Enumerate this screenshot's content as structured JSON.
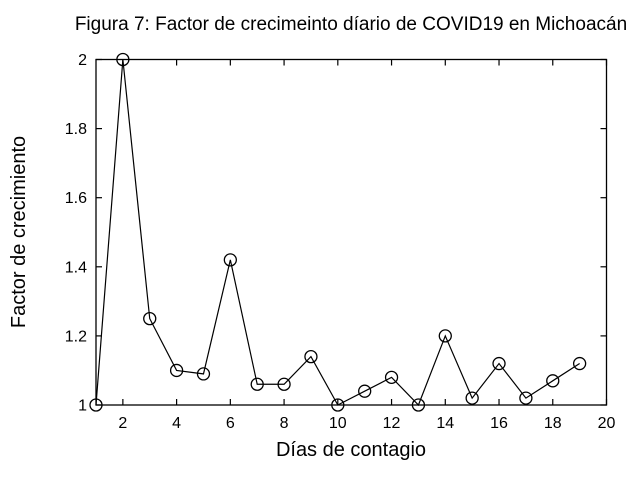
{
  "figure": {
    "background_color": "#ffffff",
    "foreground_color": "#000000"
  },
  "chart_data": {
    "type": "line",
    "title": "Figura 7: Factor de crecimeinto díario de COVID19 en Michoacán",
    "xlabel": "Días de contagio",
    "ylabel": "Factor de crecimiento",
    "x": [
      1,
      2,
      3,
      4,
      5,
      6,
      7,
      8,
      9,
      10,
      11,
      12,
      13,
      14,
      15,
      16,
      17,
      18,
      19
    ],
    "y": [
      1.0,
      2.0,
      1.25,
      1.1,
      1.09,
      1.42,
      1.06,
      1.06,
      1.14,
      1.0,
      1.04,
      1.08,
      1.0,
      1.2,
      1.02,
      1.12,
      1.02,
      1.07,
      1.12
    ],
    "xlim": [
      1,
      20
    ],
    "ylim": [
      1,
      2
    ],
    "xticks": [
      2,
      4,
      6,
      8,
      10,
      12,
      14,
      16,
      18,
      20
    ],
    "yticks": [
      1,
      1.2,
      1.4,
      1.6,
      1.8,
      2
    ],
    "ytick_labels": [
      "1",
      "1.2",
      "1.4",
      "1.6",
      "1.8",
      "2"
    ],
    "marker": "open-circle",
    "line_color": "#000000",
    "grid": false,
    "legend": null
  }
}
